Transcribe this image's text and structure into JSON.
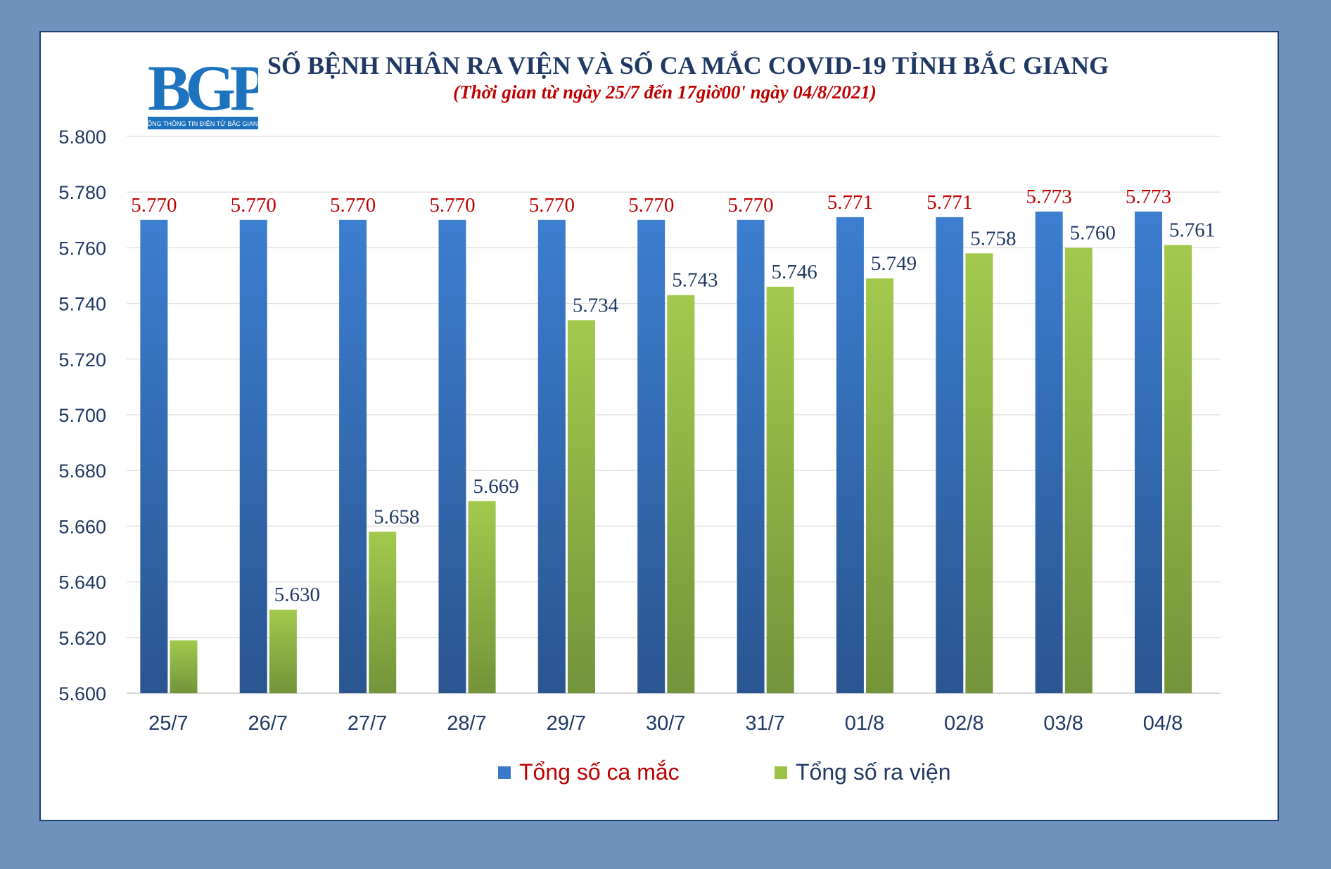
{
  "logo": {
    "icon": "bgp-logo",
    "text": "BGP",
    "caption": "CỔNG THÔNG TIN ĐIỆN TỬ BẮC GIANG"
  },
  "chart_data": {
    "type": "bar",
    "title": "SỐ BỆNH NHÂN RA VIỆN VÀ SỐ CA MẮC COVID-19 TỈNH BẮC GIANG",
    "subtitle": "(Thời gian từ ngày 25/7 đến 17giờ00' ngày 04/8/2021)",
    "categories": [
      "25/7",
      "26/7",
      "27/7",
      "28/7",
      "29/7",
      "30/7",
      "31/7",
      "01/8",
      "02/8",
      "03/8",
      "04/8"
    ],
    "series": [
      {
        "name": "Tổng số ca mắc",
        "color": "#3a79c9",
        "label_color": "#c00000",
        "values": [
          5770,
          5770,
          5770,
          5770,
          5770,
          5770,
          5770,
          5771,
          5771,
          5773,
          5773
        ],
        "labels": [
          "5.770",
          "5.770",
          "5.770",
          "5.770",
          "5.770",
          "5.770",
          "5.770",
          "5.771",
          "5.771",
          "5.773",
          "5.773"
        ]
      },
      {
        "name": "Tổng số ra viện",
        "color": "#9dc145",
        "label_color": "#1f3864",
        "values": [
          5619,
          5630,
          5658,
          5669,
          5734,
          5743,
          5746,
          5749,
          5758,
          5760,
          5761
        ],
        "labels": [
          "",
          "5.630",
          "5.658",
          "5.669",
          "5.734",
          "5.743",
          "5.746",
          "5.749",
          "5.758",
          "5.760",
          "5.761"
        ]
      }
    ],
    "ylim": [
      5600,
      5800
    ],
    "yticks": [
      5600,
      5620,
      5640,
      5660,
      5680,
      5700,
      5720,
      5740,
      5760,
      5780,
      5800
    ],
    "ytick_labels": [
      "5.600",
      "5.620",
      "5.640",
      "5.660",
      "5.680",
      "5.700",
      "5.720",
      "5.740",
      "5.760",
      "5.780",
      "5.800"
    ],
    "grid": true,
    "legend_position": "bottom"
  }
}
